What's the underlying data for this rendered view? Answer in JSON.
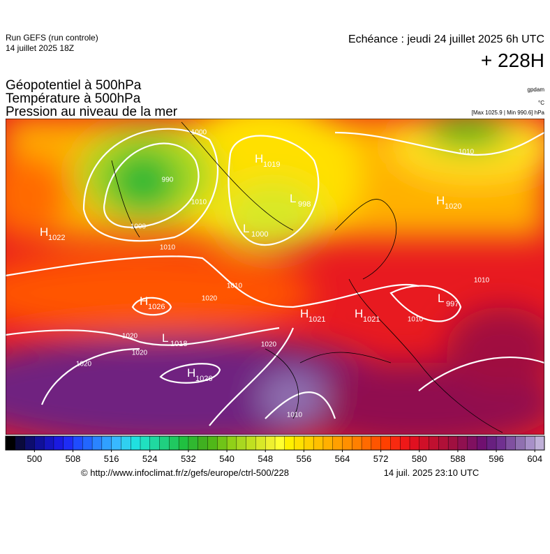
{
  "header": {
    "run": "Run GEFS (run controle)",
    "run_date": "14 juillet 2025 18Z",
    "valid": "Echéance : jeudi 24 juillet 2025 6h UTC",
    "lead": "+ 228H"
  },
  "fields": [
    "Géopotentiel à 500hPa",
    "Température à 500hPa",
    "Pression au niveau de la mer"
  ],
  "units": {
    "geopotential": "gpdam",
    "temperature": "°C",
    "pressure": "[Max 1025.9 | Min 990.6] hPa"
  },
  "centers": [
    {
      "letter": "H",
      "value": 1022
    },
    {
      "letter": "H",
      "value": 1019
    },
    {
      "letter": "L",
      "value": 998
    },
    {
      "letter": "L",
      "value": 1000
    },
    {
      "letter": "H",
      "value": 1026
    },
    {
      "letter": "L",
      "value": 1018
    },
    {
      "letter": "H",
      "value": 1026
    },
    {
      "letter": "H",
      "value": 1021
    },
    {
      "letter": "H",
      "value": 1021
    },
    {
      "letter": "H",
      "value": 1020
    },
    {
      "letter": "L",
      "value": 997
    }
  ],
  "contour_labels": [
    1000,
    990,
    1000,
    1010,
    1010,
    1020,
    1010,
    1020,
    1020,
    1020,
    1020,
    1010,
    1010,
    1010,
    1010
  ],
  "colorbar": {
    "range": [
      494,
      606
    ],
    "ticks": [
      500,
      508,
      516,
      524,
      532,
      540,
      548,
      556,
      564,
      572,
      580,
      588,
      596,
      604
    ],
    "colors": [
      "#000000",
      "#0a0a3c",
      "#0d0d6e",
      "#10109a",
      "#1515c0",
      "#1a1ae0",
      "#1e2cf5",
      "#1f4cff",
      "#2266ff",
      "#2a84ff",
      "#30a0ff",
      "#38b8ff",
      "#30d0f0",
      "#20e0e0",
      "#20e0c0",
      "#20d8a0",
      "#20d080",
      "#20c860",
      "#20c040",
      "#30b830",
      "#40b020",
      "#50b818",
      "#70c418",
      "#90d018",
      "#a8d820",
      "#c0e020",
      "#d8e828",
      "#eef030",
      "#ffff30",
      "#fff000",
      "#ffe000",
      "#ffd000",
      "#ffc000",
      "#ffb000",
      "#ffa000",
      "#ff9000",
      "#ff8000",
      "#ff6a00",
      "#ff5500",
      "#ff4000",
      "#f82a10",
      "#ee1818",
      "#e01020",
      "#d01028",
      "#c01030",
      "#b01038",
      "#a01040",
      "#901050",
      "#801060",
      "#701070",
      "#682080",
      "#703090",
      "#8050a0",
      "#9070b0",
      "#a890c8",
      "#c0b0d8"
    ]
  },
  "footer": {
    "source": "© http://www.infoclimat.fr/z/gefs/europe/ctrl-500/228",
    "made": "14 juil. 2025 23:10 UTC"
  }
}
